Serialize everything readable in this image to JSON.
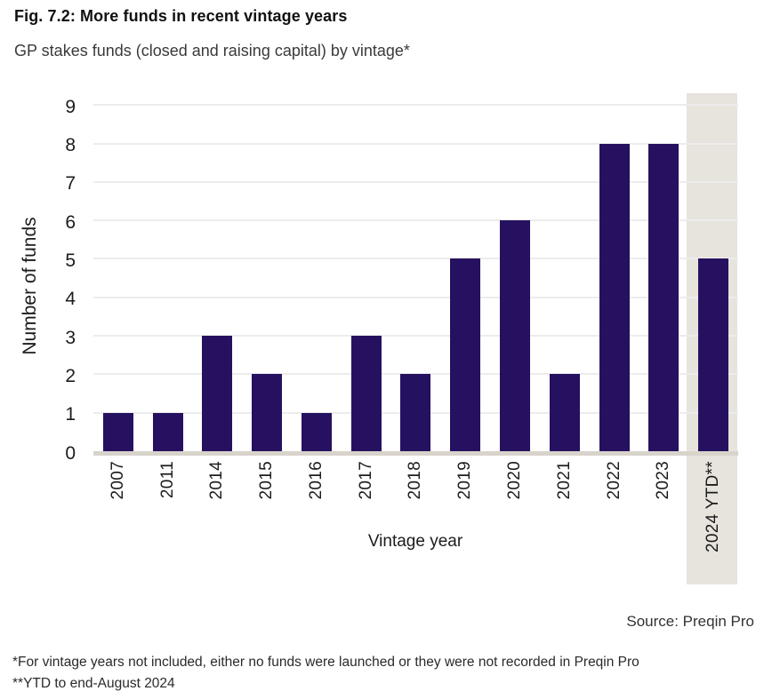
{
  "figure": {
    "title": "Fig. 7.2: More funds in recent vintage years",
    "subtitle": "GP stakes funds (closed and raising capital) by vintage*",
    "source": "Source: Preqin Pro",
    "footnotes": [
      "*For vintage years not included, either no funds were launched or they were not recorded in Preqin Pro",
      "**YTD to end-August 2024"
    ]
  },
  "chart_data": {
    "type": "bar",
    "categories": [
      "2007",
      "2011",
      "2014",
      "2015",
      "2016",
      "2017",
      "2018",
      "2019",
      "2020",
      "2021",
      "2022",
      "2023",
      "2024 YTD**"
    ],
    "values": [
      1,
      1,
      3,
      2,
      1,
      3,
      2,
      5,
      6,
      2,
      8,
      8,
      5
    ],
    "title": "",
    "xlabel": "Vintage year",
    "ylabel": "Number of funds",
    "ylim": [
      0,
      9
    ],
    "yticks": [
      0,
      1,
      2,
      3,
      4,
      5,
      6,
      7,
      8,
      9
    ],
    "grid": true,
    "legend": false,
    "highlight_last_category": true,
    "colors": {
      "bar": "#261160",
      "highlight_band": "#e7e3dd",
      "gridline": "#ececec",
      "baseline": "#d8d3cb"
    }
  }
}
